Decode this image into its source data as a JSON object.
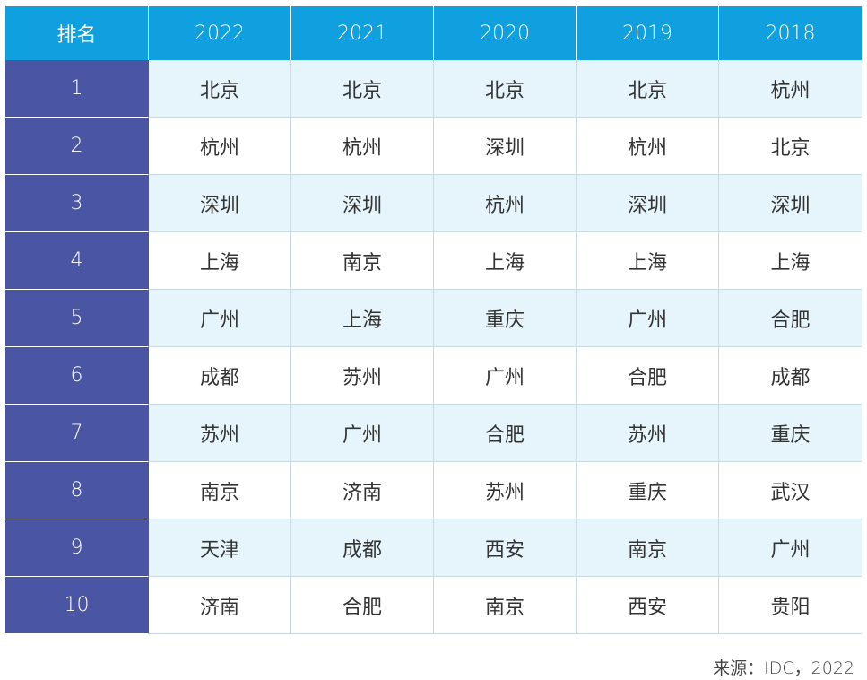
{
  "chart_data": {
    "type": "table",
    "header_label": "排名",
    "columns": [
      "2022",
      "2021",
      "2020",
      "2019",
      "2018"
    ],
    "rows": [
      {
        "rank": "1",
        "cells": [
          "北京",
          "北京",
          "北京",
          "北京",
          "杭州"
        ]
      },
      {
        "rank": "2",
        "cells": [
          "杭州",
          "杭州",
          "深圳",
          "杭州",
          "北京"
        ]
      },
      {
        "rank": "3",
        "cells": [
          "深圳",
          "深圳",
          "杭州",
          "深圳",
          "深圳"
        ]
      },
      {
        "rank": "4",
        "cells": [
          "上海",
          "南京",
          "上海",
          "上海",
          "上海"
        ]
      },
      {
        "rank": "5",
        "cells": [
          "广州",
          "上海",
          "重庆",
          "广州",
          "合肥"
        ]
      },
      {
        "rank": "6",
        "cells": [
          "成都",
          "苏州",
          "广州",
          "合肥",
          "成都"
        ]
      },
      {
        "rank": "7",
        "cells": [
          "苏州",
          "广州",
          "合肥",
          "苏州",
          "重庆"
        ]
      },
      {
        "rank": "8",
        "cells": [
          "南京",
          "济南",
          "苏州",
          "重庆",
          "武汉"
        ]
      },
      {
        "rank": "9",
        "cells": [
          "天津",
          "成都",
          "西安",
          "南京",
          "广州"
        ]
      },
      {
        "rank": "10",
        "cells": [
          "济南",
          "合肥",
          "南京",
          "西安",
          "贵阳"
        ]
      }
    ],
    "source": "来源：IDC，2022"
  },
  "colors": {
    "header_bg": "#109fdf",
    "rank_bg": "#4a56a3",
    "row_alt_bg": "#e6f4fb"
  }
}
